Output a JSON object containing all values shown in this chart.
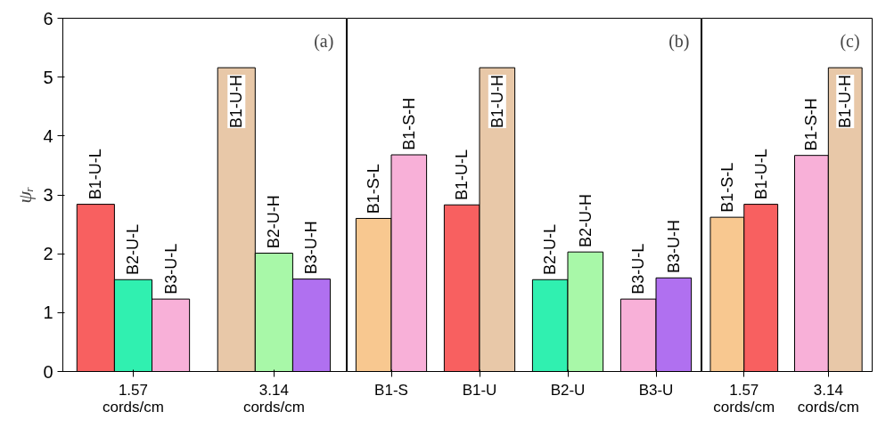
{
  "chart_data": [
    {
      "type": "bar",
      "title": "(a)",
      "ylabel": "ψᵣ",
      "categories": [
        "1.57 cords/cm",
        "3.14 cords/cm"
      ],
      "ylim": [
        0,
        6
      ],
      "yticks": [
        0,
        1,
        2,
        3,
        4,
        5,
        6
      ],
      "grid": false,
      "series": [
        {
          "values": [
            2.84,
            5.16
          ],
          "colors": [
            "#f86060",
            "#e8c8a8"
          ],
          "value_labels": [
            "B1-U-L",
            "B1-U-H"
          ]
        },
        {
          "values": [
            1.56,
            2.01
          ],
          "colors": [
            "#30f0b0",
            "#a8f8a8"
          ],
          "value_labels": [
            "B2-U-L",
            "B2-U-H"
          ]
        },
        {
          "values": [
            1.23,
            1.57
          ],
          "colors": [
            "#f8b0d8",
            "#b070f0"
          ],
          "value_labels": [
            "B3-U-L",
            "B3-U-H"
          ]
        }
      ]
    },
    {
      "type": "bar",
      "title": "(b)",
      "categories": [
        "B1-S",
        "B1-U",
        "B2-U",
        "B3-U"
      ],
      "ylim": [
        0,
        6
      ],
      "tick_labels": "x",
      "grid": false,
      "series": [
        {
          "values": [
            2.6,
            2.83,
            1.56,
            1.23
          ],
          "colors": [
            "#f8c890",
            "#f86060",
            "#30f0b0",
            "#f8b0d8"
          ],
          "value_labels": [
            "B1-S-L",
            "B1-U-L",
            "B2-U-L",
            "B3-U-L"
          ]
        },
        {
          "values": [
            3.68,
            5.16,
            2.03,
            1.59
          ],
          "colors": [
            "#f8b0d8",
            "#e8c8a8",
            "#a8f8a8",
            "#b070f0"
          ],
          "value_labels": [
            "B1-S-H",
            "B1-U-H",
            "B2-U-H",
            "B3-U-H"
          ]
        }
      ]
    },
    {
      "type": "bar",
      "title": "(c)",
      "categories": [
        "1.57 cords/cm",
        "3.14 cords/cm"
      ],
      "ylim": [
        0,
        6
      ],
      "tick_labels": "x",
      "grid": false,
      "series": [
        {
          "values": [
            2.62,
            3.67
          ],
          "colors": [
            "#f8c890",
            "#f8b0d8"
          ],
          "value_labels": [
            "B1-S-L",
            "B1-S-H"
          ]
        },
        {
          "values": [
            2.84,
            5.16
          ],
          "colors": [
            "#f86060",
            "#e8c8a8"
          ],
          "value_labels": [
            "B1-U-L",
            "B1-U-H"
          ]
        }
      ]
    }
  ]
}
